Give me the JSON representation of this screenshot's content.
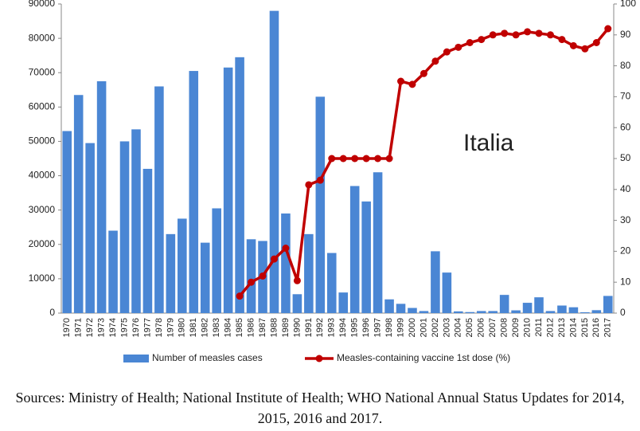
{
  "chart_data": {
    "type": "bar_line",
    "categories": [
      "1970",
      "1971",
      "1972",
      "1973",
      "1974",
      "1975",
      "1976",
      "1977",
      "1978",
      "1979",
      "1980",
      "1981",
      "1982",
      "1983",
      "1984",
      "1985",
      "1986",
      "1987",
      "1988",
      "1989",
      "1990",
      "1991",
      "1992",
      "1993",
      "1994",
      "1995",
      "1996",
      "1997",
      "1998",
      "1999",
      "2000",
      "2001",
      "2002",
      "2003",
      "2004",
      "2005",
      "2006",
      "2007",
      "2008",
      "2009",
      "2010",
      "2011",
      "2012",
      "2013",
      "2014",
      "2015",
      "2016",
      "2017"
    ],
    "series": [
      {
        "name": "Number of measles cases",
        "type": "bar",
        "color": "#4a86d4",
        "axis": "y",
        "values": [
          53000,
          63500,
          49500,
          67500,
          24000,
          50000,
          53500,
          42000,
          66000,
          23000,
          27500,
          70500,
          20500,
          30500,
          71500,
          74500,
          21500,
          21000,
          88000,
          29000,
          5500,
          23000,
          63000,
          17500,
          6000,
          37000,
          32500,
          41000,
          4000,
          2700,
          1500,
          600,
          18000,
          11800,
          500,
          300,
          600,
          600,
          5300,
          800,
          3000,
          4600,
          600,
          2200,
          1700,
          250,
          850,
          5000
        ]
      },
      {
        "name": "Measles-containing vaccine 1st dose (%)",
        "type": "line",
        "color": "#c00000",
        "axis": "y2",
        "values": [
          null,
          null,
          null,
          null,
          null,
          null,
          null,
          null,
          null,
          null,
          null,
          null,
          null,
          null,
          null,
          5.5,
          10,
          12,
          17.5,
          21,
          10.5,
          41.5,
          43,
          50,
          50,
          50,
          50,
          50,
          50,
          75,
          74,
          77.5,
          81.5,
          84.5,
          86,
          87.5,
          88.5,
          90,
          90.5,
          90,
          91,
          90.5,
          90,
          88.5,
          86.5,
          85.5,
          87.5,
          92
        ]
      }
    ],
    "ylim": [
      0,
      90000
    ],
    "yticks": [
      0,
      10000,
      20000,
      30000,
      40000,
      50000,
      60000,
      70000,
      80000,
      90000
    ],
    "y2lim": [
      0,
      100
    ],
    "y2ticks": [
      0,
      10,
      20,
      30,
      40,
      50,
      60,
      70,
      80,
      90,
      100
    ],
    "annotation": "Italia",
    "source": "Sources: Ministry of Health; National Institute of Health; WHO National Annual Status Updates for 2014, 2015, 2016 and 2017."
  }
}
